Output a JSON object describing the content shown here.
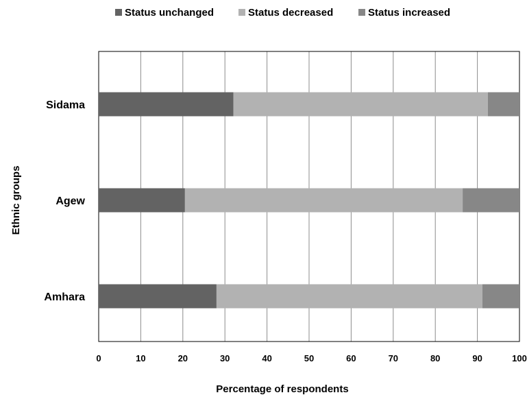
{
  "chart_data": {
    "type": "bar",
    "orientation": "horizontal",
    "stacked": true,
    "categories": [
      "Sidama",
      "Agew",
      "Amhara"
    ],
    "series": [
      {
        "name": "Status unchanged",
        "color": "#636363",
        "values": [
          32,
          20.5,
          28
        ]
      },
      {
        "name": "Status decreased",
        "color": "#b2b2b2",
        "values": [
          60.5,
          66,
          63.2
        ]
      },
      {
        "name": "Status increased",
        "color": "#878787",
        "values": [
          7.5,
          13.5,
          8.8
        ]
      }
    ],
    "xlabel": "Percentage of respondents",
    "ylabel": "Ethnic groups",
    "xlim": [
      0,
      100
    ],
    "xticks": [
      "0",
      "10",
      "20",
      "30",
      "40",
      "50",
      "60",
      "70",
      "80",
      "90",
      "100"
    ],
    "grid": "vertical",
    "legend": "top"
  }
}
